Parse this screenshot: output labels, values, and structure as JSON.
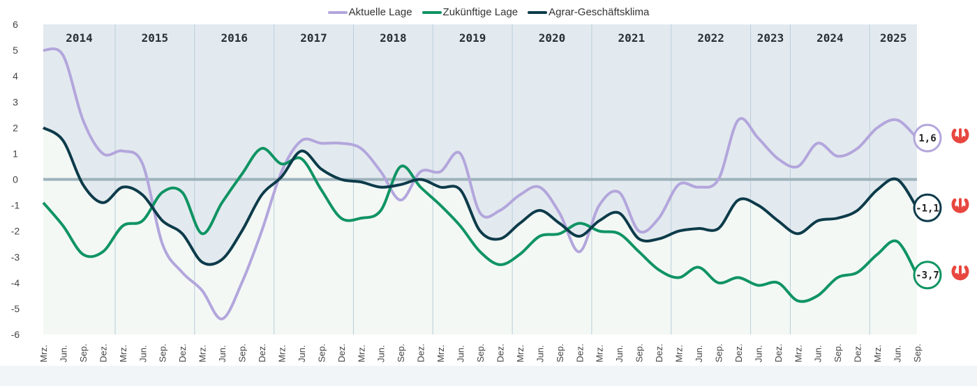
{
  "chart_data": {
    "type": "line",
    "title": "",
    "xlabel": "",
    "ylabel": "",
    "ylim": [
      -6,
      6
    ],
    "yticks": [
      "6",
      "5",
      "4",
      "3",
      "2",
      "1",
      "0",
      "-1",
      "-2",
      "-3",
      "-4",
      "-5",
      "-6"
    ],
    "grid": false,
    "legend_position": "top-center",
    "years": [
      "2014",
      "2015",
      "2016",
      "2017",
      "2018",
      "2019",
      "2020",
      "2021",
      "2022",
      "2023",
      "2024",
      "2025"
    ],
    "x": [
      "Mrz.",
      "Jun.",
      "Sep.",
      "Dez.",
      "Mrz.",
      "Jun.",
      "Sep.",
      "Dez.",
      "Mrz.",
      "Jun.",
      "Sep.",
      "Dez.",
      "Mrz.",
      "Jun.",
      "Sep.",
      "Dez.",
      "Mrz.",
      "Jun.",
      "Sep.",
      "Dez.",
      "Mrz.",
      "Jun.",
      "Sep.",
      "Dez.",
      "Mrz.",
      "Jun.",
      "Sep.",
      "Dez.",
      "Mrz.",
      "Jun.",
      "Sep.",
      "Dez.",
      "Mrz.",
      "Jun.",
      "Sep.",
      "Dez.",
      "Jun.",
      "Dez.",
      "Mrz.",
      "Jun.",
      "Sep.",
      "Dez.",
      "Mrz.",
      "Jun.",
      "Sep."
    ],
    "series": [
      {
        "name": "Aktuelle Lage",
        "color": "#b3a6dc",
        "end_label": "1,6",
        "values": [
          5.0,
          4.8,
          2.3,
          1.0,
          1.1,
          0.6,
          -2.5,
          -3.6,
          -4.3,
          -5.4,
          -4.0,
          -2.0,
          0.3,
          1.5,
          1.4,
          1.4,
          1.2,
          0.3,
          -0.8,
          0.3,
          0.3,
          1.0,
          -1.3,
          -1.2,
          -0.6,
          -0.3,
          -1.3,
          -2.8,
          -1.0,
          -0.5,
          -2.0,
          -1.5,
          -0.2,
          -0.3,
          0.0,
          2.3,
          1.6,
          0.8,
          0.5,
          1.4,
          0.9,
          1.2,
          2.0,
          2.3,
          1.6
        ]
      },
      {
        "name": "Zukünftige Lage",
        "color": "#0f9463",
        "end_label": "-3,7",
        "values": [
          -0.9,
          -1.8,
          -2.9,
          -2.8,
          -1.8,
          -1.6,
          -0.5,
          -0.5,
          -2.1,
          -0.9,
          0.2,
          1.2,
          0.6,
          0.8,
          -0.4,
          -1.5,
          -1.5,
          -1.2,
          0.5,
          -0.3,
          -1.0,
          -1.8,
          -2.8,
          -3.3,
          -2.9,
          -2.2,
          -2.1,
          -1.7,
          -2.0,
          -2.1,
          -2.8,
          -3.5,
          -3.8,
          -3.4,
          -4.0,
          -3.8,
          -4.1,
          -4.0,
          -4.7,
          -4.5,
          -3.8,
          -3.6,
          -2.9,
          -2.4,
          -3.7
        ]
      },
      {
        "name": "Agrar-Geschäftsklima",
        "color": "#0d3b4a",
        "end_label": "-1,1",
        "values": [
          2.0,
          1.5,
          -0.2,
          -0.9,
          -0.3,
          -0.6,
          -1.6,
          -2.1,
          -3.2,
          -3.1,
          -2.0,
          -0.6,
          0.1,
          1.1,
          0.4,
          0.0,
          -0.1,
          -0.3,
          -0.2,
          0.0,
          -0.3,
          -0.4,
          -2.0,
          -2.3,
          -1.7,
          -1.2,
          -1.7,
          -2.2,
          -1.6,
          -1.3,
          -2.3,
          -2.3,
          -2.0,
          -1.9,
          -1.9,
          -0.8,
          -1.0,
          -1.6,
          -2.1,
          -1.6,
          -1.5,
          -1.2,
          -0.4,
          0.0,
          -1.1
        ]
      }
    ],
    "trend_icon": "arrow-down-icon",
    "colors": {
      "upper_bg": "#e3eaef",
      "lower_bg": "#f3f8f5",
      "zero_line": "#9db2bb",
      "trend": "#e8473f"
    }
  }
}
